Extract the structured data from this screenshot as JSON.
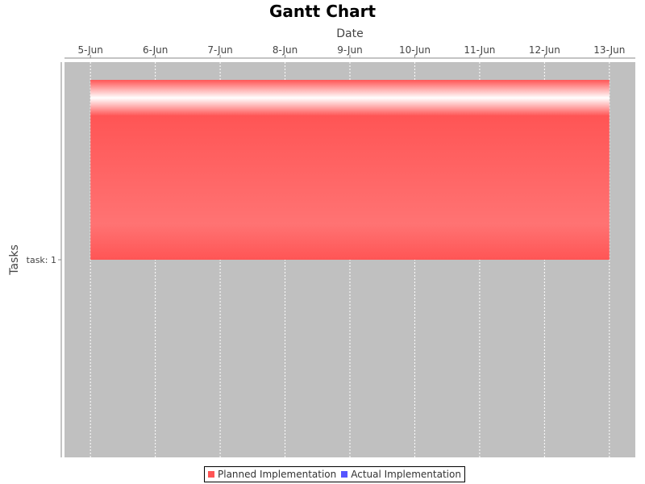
{
  "chart_data": {
    "type": "gantt",
    "title": "Gantt Chart",
    "xlabel": "Date",
    "ylabel": "Tasks",
    "x_ticks": [
      "5-Jun",
      "6-Jun",
      "7-Jun",
      "8-Jun",
      "9-Jun",
      "10-Jun",
      "11-Jun",
      "12-Jun",
      "13-Jun"
    ],
    "xlim": [
      "4.6-Jun",
      "13.4-Jun"
    ],
    "categories": [
      "task: 1"
    ],
    "series": [
      {
        "name": "Planned Implementation",
        "color": "#ff5555",
        "tasks": [
          {
            "category": "task: 1",
            "start": "5-Jun",
            "end": "13-Jun"
          }
        ]
      },
      {
        "name": "Actual Implementation",
        "color": "#5555ff",
        "tasks": []
      }
    ],
    "legend": "bottom-center",
    "grid": true,
    "plot_background": "#c0c0c0"
  }
}
